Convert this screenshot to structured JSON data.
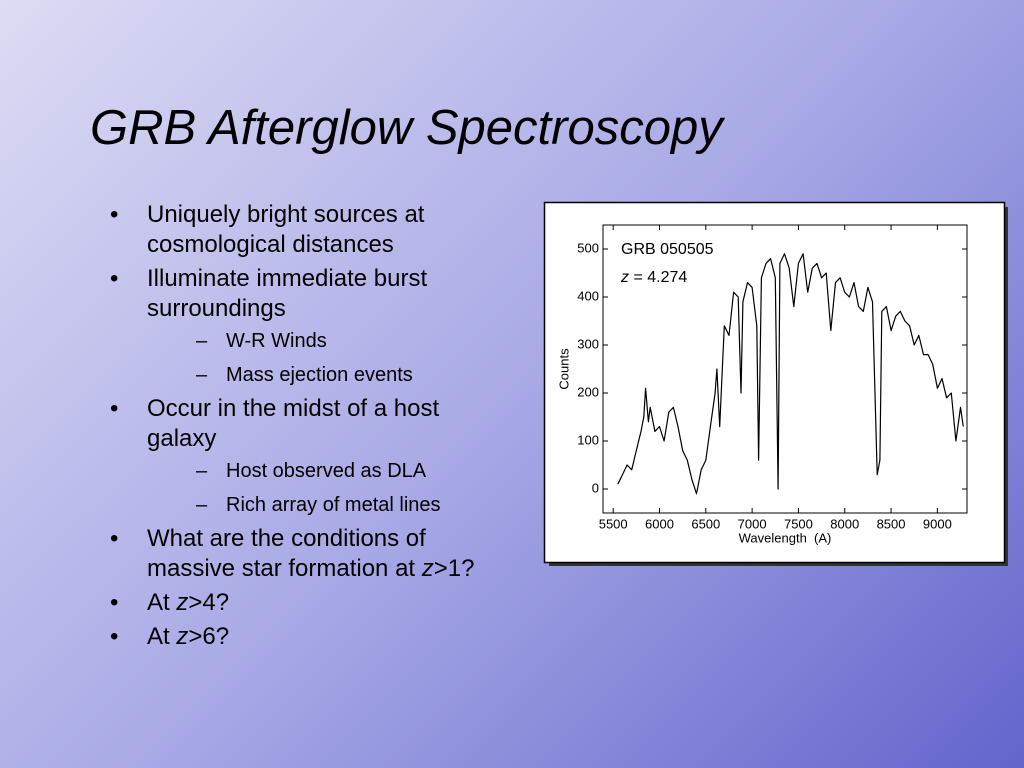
{
  "title": "GRB Afterglow Spectroscopy",
  "bullets": [
    {
      "text": "Uniquely bright sources at cosmological distances"
    },
    {
      "text": "Illuminate immediate burst surroundings",
      "sub": [
        "W-R Winds",
        "Mass ejection events"
      ]
    },
    {
      "text": "Occur in the midst of a host galaxy",
      "sub": [
        "Host observed as DLA",
        "Rich array of metal lines"
      ]
    },
    {
      "parts": [
        "What are the conditions of massive star formation at ",
        "z",
        ">1?"
      ]
    },
    {
      "parts": [
        "At ",
        "z",
        ">4?"
      ]
    },
    {
      "parts": [
        "At ",
        "z",
        ">6?"
      ]
    }
  ],
  "chart_data": {
    "type": "line",
    "x_label": "Wavelength  (A)",
    "y_label": "Counts",
    "annotations": [
      {
        "text": "GRB 050505"
      },
      {
        "parts": [
          "z",
          " = 4.274"
        ]
      }
    ],
    "color": "#000000",
    "x": [
      5550,
      5600,
      5650,
      5700,
      5750,
      5800,
      5830,
      5850,
      5880,
      5900,
      5950,
      6000,
      6050,
      6100,
      6150,
      6200,
      6250,
      6300,
      6350,
      6400,
      6450,
      6500,
      6550,
      6600,
      6620,
      6650,
      6700,
      6750,
      6800,
      6850,
      6880,
      6900,
      6950,
      7000,
      7050,
      7070,
      7100,
      7150,
      7200,
      7250,
      7280,
      7300,
      7350,
      7400,
      7450,
      7500,
      7550,
      7600,
      7650,
      7700,
      7750,
      7800,
      7850,
      7900,
      7950,
      8000,
      8050,
      8100,
      8150,
      8200,
      8250,
      8300,
      8350,
      8380,
      8400,
      8450,
      8500,
      8550,
      8600,
      8650,
      8700,
      8750,
      8800,
      8850,
      8900,
      8950,
      9000,
      9050,
      9100,
      9150,
      9200,
      9250,
      9280
    ],
    "values": [
      10,
      30,
      50,
      40,
      80,
      120,
      150,
      210,
      140,
      170,
      120,
      130,
      100,
      160,
      170,
      130,
      80,
      60,
      20,
      -10,
      40,
      60,
      130,
      200,
      250,
      130,
      340,
      320,
      410,
      400,
      200,
      390,
      430,
      420,
      340,
      60,
      440,
      470,
      480,
      440,
      0,
      470,
      490,
      460,
      380,
      470,
      490,
      410,
      460,
      470,
      440,
      450,
      330,
      430,
      440,
      410,
      400,
      430,
      380,
      370,
      420,
      390,
      30,
      60,
      370,
      380,
      330,
      360,
      370,
      350,
      340,
      300,
      320,
      280,
      280,
      260,
      210,
      230,
      190,
      200,
      100,
      170,
      130
    ],
    "xlim": [
      5390,
      9320
    ],
    "ylim": [
      -50,
      550
    ],
    "xticks": [
      5500,
      6000,
      6500,
      7000,
      7500,
      8000,
      8500,
      9000
    ],
    "yticks": [
      0,
      100,
      200,
      300,
      400,
      500
    ]
  }
}
